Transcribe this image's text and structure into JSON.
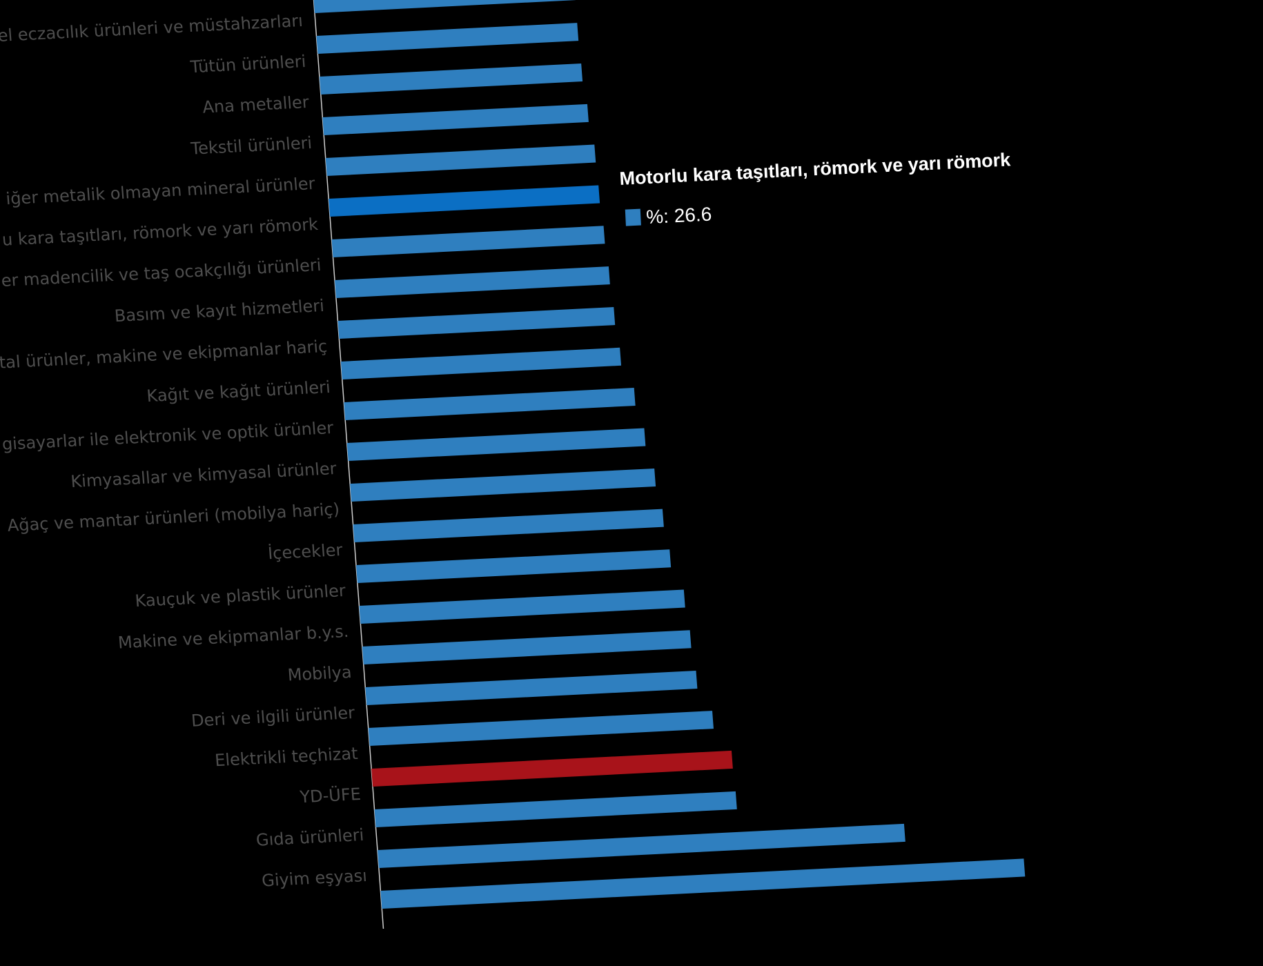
{
  "chart_data": {
    "type": "bar",
    "orientation": "horizontal",
    "categories": [
      "el eczacılık ürünleri ve müstahzarları",
      "Tütün ürünleri",
      "Ana metaller",
      "Tekstil ürünleri",
      "iğer metalik olmayan mineral ürünler",
      "u kara taşıtları, römork ve yarı römork",
      "er madencilik ve taş ocakçılığı ürünleri",
      "Basım ve kayıt hizmetleri",
      "etal ürünler, makine ve ekipmanlar hariç",
      "Kağıt ve kağıt ürünleri",
      "gisayarlar ile elektronik ve optik ürünler",
      "Kimyasallar ve kimyasal ürünler",
      "Ağaç ve mantar ürünleri (mobilya hariç)",
      "İçecekler",
      "Kauçuk ve plastik ürünler",
      "Makine ve ekipmanlar b.y.s.",
      "Mobilya",
      "Deri ve ilgili ürünler",
      "Elektrikli teçhizat",
      "YD-ÜFE",
      "Gıda ürünleri",
      "Giyim eşyası",
      ""
    ],
    "values": [
      25.7,
      25.7,
      25.8,
      26.1,
      26.5,
      26.6,
      26.8,
      27.0,
      27.2,
      27.5,
      28.6,
      29.3,
      30.0,
      30.5,
      30.9,
      32.0,
      32.3,
      32.6,
      33.9,
      35.5,
      35.6,
      51.9,
      63.4
    ],
    "series_name": "%",
    "highlighted_index": 5,
    "reference_index": 19,
    "xlim": [
      0,
      70
    ],
    "grid": false,
    "colors": {
      "bar": "#2f7fbf",
      "highlight": "#0b6fc4",
      "reference": "#a8131a",
      "label": "#4e4e4e",
      "background": "#000000"
    }
  },
  "tooltip": {
    "title": "Motorlu kara taşıtları, römork ve yarı römork",
    "value_text": "%: 26.6",
    "swatch_color": "#2f7fbf"
  }
}
